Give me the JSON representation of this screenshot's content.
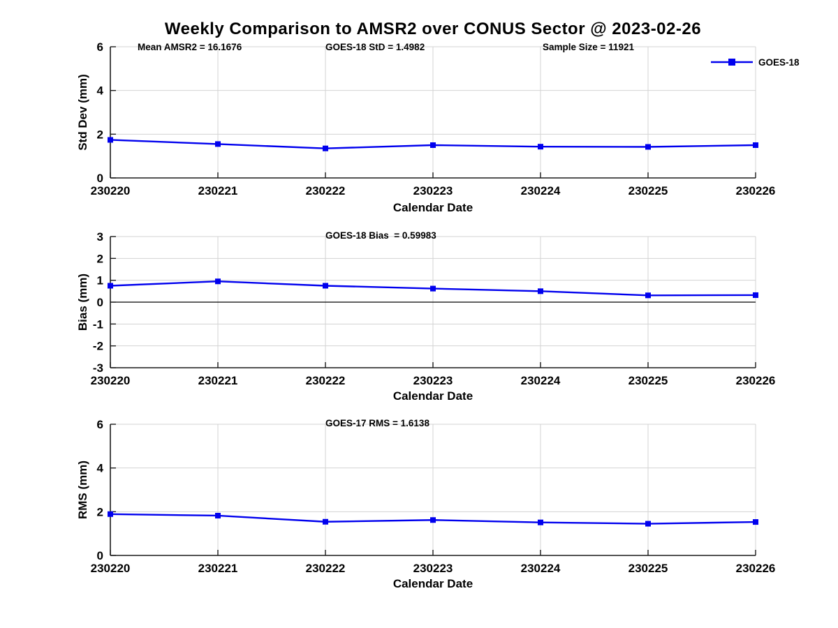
{
  "figure": {
    "title": "Weekly Comparison to AMSR2 over CONUS Sector @ 2023-02-26",
    "background_color": "#ffffff"
  },
  "style": {
    "series_color": "#0000EE",
    "grid_color": "#d3d3d3",
    "axis_color": "#1a1a1a",
    "text_color": "#000000"
  },
  "legend": {
    "label": "GOES-18",
    "position": "top-right",
    "marker": "filled-square",
    "line_color": "#0000EE"
  },
  "chart_data": [
    {
      "type": "line",
      "title": "",
      "xlabel": "Calendar Date",
      "ylabel": "Std Dev (mm)",
      "categories": [
        "230220",
        "230221",
        "230222",
        "230223",
        "230224",
        "230225",
        "230226"
      ],
      "series": [
        {
          "name": "GOES-18",
          "marker": "square",
          "values": [
            1.74,
            1.55,
            1.35,
            1.5,
            1.43,
            1.42,
            1.5
          ]
        }
      ],
      "ylim": [
        0,
        6
      ],
      "yticks": [
        0,
        2,
        4,
        6
      ],
      "grid": true,
      "zero_line": false,
      "annotations": [
        {
          "text": "Mean AMSR2 = 16.1676"
        },
        {
          "text": "GOES-18 StD = 1.4982"
        },
        {
          "text": "Sample Size = 11921"
        }
      ]
    },
    {
      "type": "line",
      "title": "",
      "xlabel": "Calendar Date",
      "ylabel": "Bias (mm)",
      "categories": [
        "230220",
        "230221",
        "230222",
        "230223",
        "230224",
        "230225",
        "230226"
      ],
      "series": [
        {
          "name": "GOES-18",
          "marker": "square",
          "values": [
            0.75,
            0.95,
            0.75,
            0.62,
            0.5,
            0.31,
            0.32
          ]
        }
      ],
      "ylim": [
        -3,
        3
      ],
      "yticks": [
        -3,
        -2,
        -1,
        0,
        1,
        2,
        3
      ],
      "grid": true,
      "zero_line": true,
      "annotations": [
        {
          "text": "GOES-18 Bias  = 0.59983"
        }
      ]
    },
    {
      "type": "line",
      "title": "",
      "xlabel": "Calendar Date",
      "ylabel": "RMS (mm)",
      "categories": [
        "230220",
        "230221",
        "230222",
        "230223",
        "230224",
        "230225",
        "230226"
      ],
      "series": [
        {
          "name": "GOES-18",
          "marker": "square",
          "values": [
            1.89,
            1.82,
            1.54,
            1.62,
            1.51,
            1.45,
            1.53
          ]
        }
      ],
      "ylim": [
        0,
        6
      ],
      "yticks": [
        0,
        2,
        4,
        6
      ],
      "grid": true,
      "zero_line": false,
      "annotations": [
        {
          "text": "GOES-17 RMS = 1.6138"
        }
      ]
    }
  ]
}
